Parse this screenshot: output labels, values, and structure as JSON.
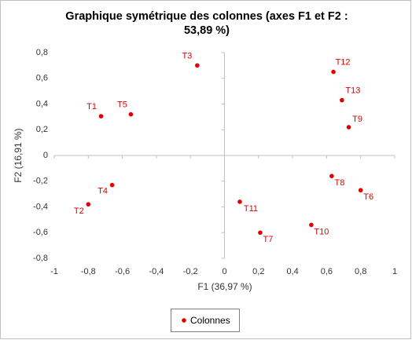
{
  "chart_data": {
    "type": "scatter",
    "title": "Graphique symétrique des colonnes (axes F1 et F2 : 53,89 %)",
    "x_label": "F1 (36,97 %)",
    "y_label": "F2 (16,91 %)",
    "xlim": [
      -1,
      1
    ],
    "ylim": [
      -0.8,
      0.8
    ],
    "xticks": [
      -1,
      {
        "value": -0.8,
        "label": "-0,8"
      },
      {
        "value": -0.6,
        "label": "-0,6"
      },
      {
        "value": -0.4,
        "label": "-0,4"
      },
      {
        "value": -0.2,
        "label": "-0,2"
      },
      0,
      {
        "value": 0.2,
        "label": "0,2"
      },
      {
        "value": 0.4,
        "label": "0,4"
      },
      {
        "value": 0.6,
        "label": "0,6"
      },
      {
        "value": 0.8,
        "label": "0,8"
      },
      1
    ],
    "yticks": [
      {
        "value": -0.8,
        "label": "-0,8"
      },
      {
        "value": -0.6,
        "label": "-0,6"
      },
      {
        "value": -0.4,
        "label": "-0,4"
      },
      {
        "value": -0.2,
        "label": "-0,2"
      },
      0,
      {
        "value": 0.2,
        "label": "0,2"
      },
      {
        "value": 0.4,
        "label": "0,4"
      },
      {
        "value": 0.6,
        "label": "0,6"
      },
      {
        "value": 0.8,
        "label": "0,8"
      }
    ],
    "legend": "bottom",
    "series": [
      {
        "name": "Colonnes",
        "color": "#e00000",
        "labels": [
          "T1",
          "T2",
          "T3",
          "T4",
          "T5",
          "T6",
          "T7",
          "T8",
          "T9",
          "T10",
          "T11",
          "T12",
          "T13"
        ],
        "x": [
          -0.725,
          -0.8,
          -0.16,
          -0.66,
          -0.55,
          0.8,
          0.21,
          0.63,
          0.73,
          0.51,
          0.09,
          0.64,
          0.69
        ],
        "values": [
          0.305,
          -0.38,
          0.7,
          -0.23,
          0.32,
          -0.27,
          -0.6,
          -0.16,
          0.22,
          -0.54,
          -0.36,
          0.65,
          0.43
        ]
      }
    ]
  }
}
